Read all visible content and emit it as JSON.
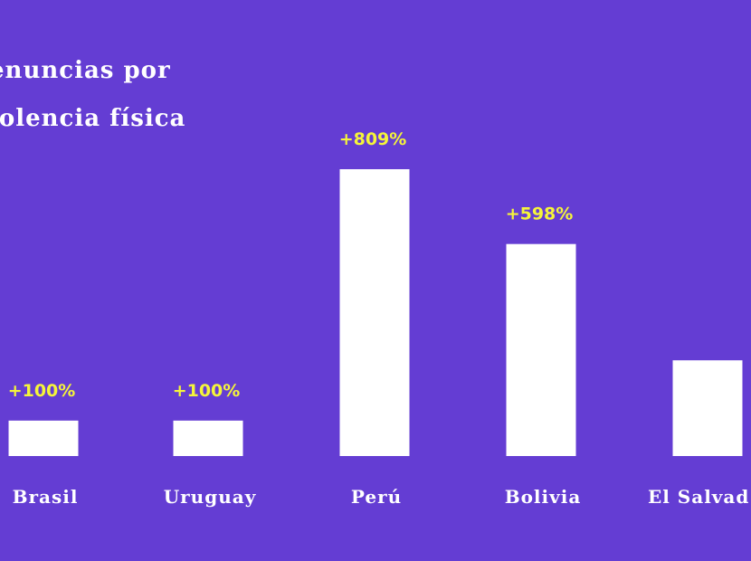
{
  "chart_data": {
    "type": "bar",
    "title_lines": [
      "enuncias por",
      "iolencia física"
    ],
    "categories": [
      "Brasil",
      "Uruguay",
      "Perú",
      "Bolivia",
      "El Salvad"
    ],
    "values": [
      100,
      100,
      809,
      598,
      270
    ],
    "value_labels": [
      "+100%",
      "+100%",
      "+809%",
      "+598%",
      ""
    ],
    "unit": "%",
    "ylim": [
      0,
      809
    ],
    "grid": false,
    "legend": "none",
    "colors": {
      "background": "#643dd3",
      "bar": "#ffffff",
      "value_label": "#f5f53a",
      "text": "#ffffff"
    }
  }
}
